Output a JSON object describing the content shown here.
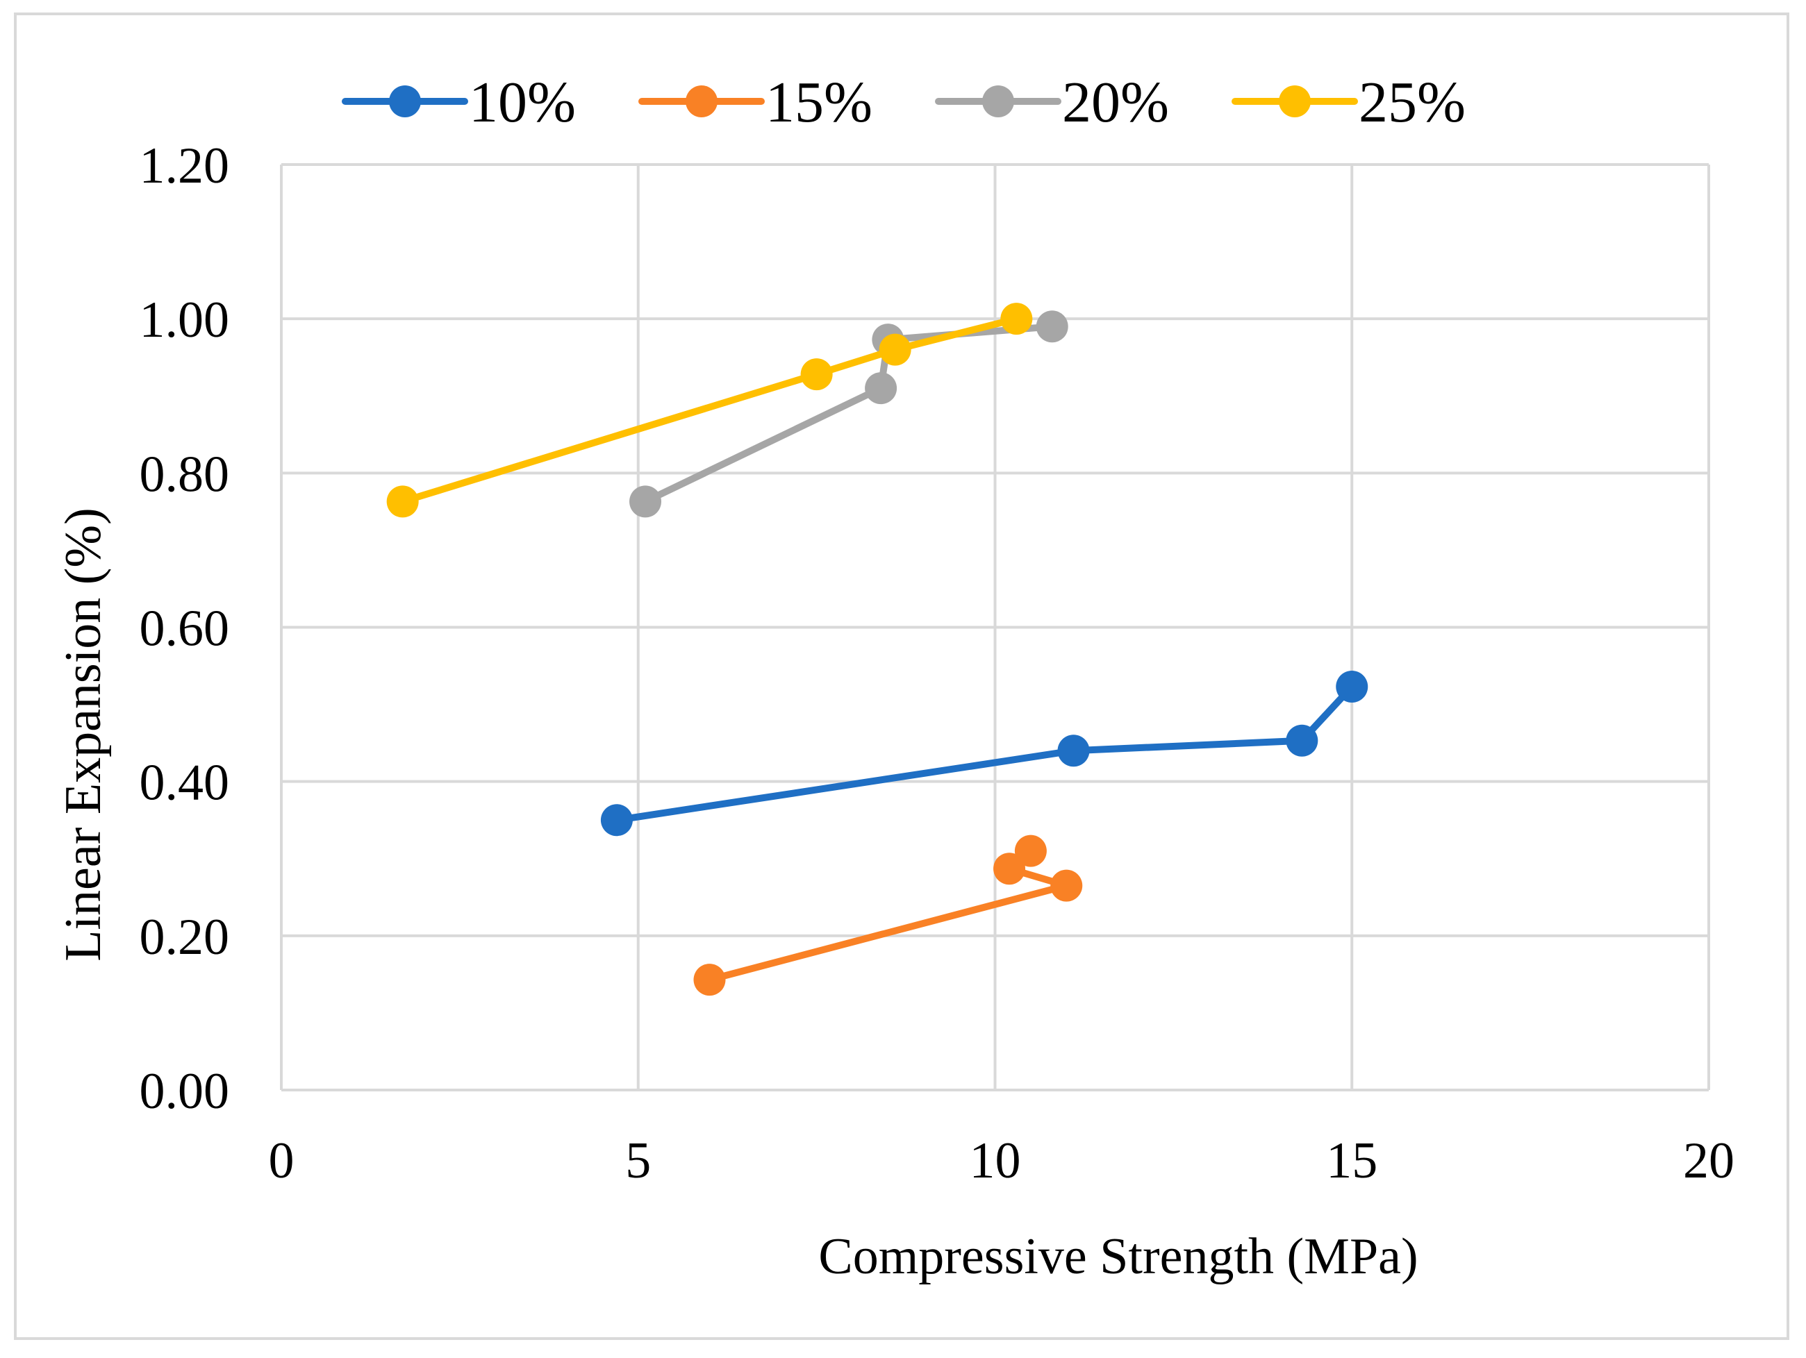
{
  "chart_data": {
    "type": "line",
    "title": "",
    "xlabel": "Compressive Strength (MPa)",
    "ylabel": "Linear Expansion (%)",
    "xlim": [
      0,
      20
    ],
    "ylim": [
      0,
      1.2
    ],
    "x_ticks": [
      0,
      5,
      10,
      15,
      20
    ],
    "x_tick_labels": [
      "0",
      "5",
      "10",
      "15",
      "20"
    ],
    "y_ticks": [
      0,
      0.2,
      0.4,
      0.6,
      0.8,
      1.0,
      1.2
    ],
    "y_tick_labels": [
      "0.00",
      "0.20",
      "0.40",
      "0.60",
      "0.80",
      "1.00",
      "1.20"
    ],
    "grid": true,
    "legend_position": "top",
    "series": [
      {
        "name": "10%",
        "color": "#1f6fc4",
        "points": [
          [
            4.7,
            0.35
          ],
          [
            11.1,
            0.44
          ],
          [
            14.3,
            0.453
          ],
          [
            15.0,
            0.523
          ]
        ]
      },
      {
        "name": "15%",
        "color": "#f98125",
        "points": [
          [
            6.0,
            0.143
          ],
          [
            11.0,
            0.265
          ],
          [
            10.2,
            0.287
          ],
          [
            10.5,
            0.31
          ]
        ]
      },
      {
        "name": "20%",
        "color": "#a6a6a6",
        "points": [
          [
            5.1,
            0.763
          ],
          [
            8.4,
            0.91
          ],
          [
            8.5,
            0.973
          ],
          [
            10.8,
            0.99
          ]
        ]
      },
      {
        "name": "25%",
        "color": "#ffbf00",
        "points": [
          [
            1.7,
            0.763
          ],
          [
            7.5,
            0.928
          ],
          [
            8.6,
            0.96
          ],
          [
            10.3,
            1.0
          ]
        ]
      }
    ]
  }
}
